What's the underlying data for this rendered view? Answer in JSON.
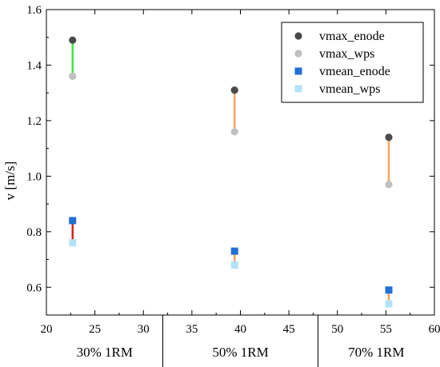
{
  "chart_data": {
    "type": "scatter",
    "title": "",
    "xlabel": "",
    "ylabel": "v [m/s]",
    "xlim": [
      20,
      60
    ],
    "ylim": [
      0.5,
      1.6
    ],
    "x_ticks": [
      "20",
      "25",
      "30",
      "35",
      "40",
      "45",
      "50",
      "55",
      "60"
    ],
    "y_ticks": [
      "0.6",
      "0.8",
      "1.0",
      "1.2",
      "1.4",
      "1.6"
    ],
    "x_tick_values": [
      20,
      25,
      30,
      35,
      40,
      45,
      50,
      55,
      60
    ],
    "y_tick_values": [
      0.6,
      0.8,
      1.0,
      1.2,
      1.4,
      1.6
    ],
    "grid": false,
    "legend_position": "top-right",
    "group_labels": [
      {
        "label": "30% 1RM",
        "x_from": 20,
        "x_to": 32
      },
      {
        "label": "50% 1RM",
        "x_from": 32,
        "x_to": 48
      },
      {
        "label": "70% 1RM",
        "x_from": 48,
        "x_to": 60
      }
    ],
    "group_separators": [
      32,
      48
    ],
    "series": [
      {
        "name": "vmax_enode",
        "marker": "circle",
        "color": "#4a4a4a",
        "points": [
          {
            "x": 22.7,
            "y": 1.49
          },
          {
            "x": 39.4,
            "y": 1.31
          },
          {
            "x": 55.3,
            "y": 1.14
          }
        ]
      },
      {
        "name": "vmax_wps",
        "marker": "circle",
        "color": "#c0c0c0",
        "points": [
          {
            "x": 22.7,
            "y": 1.36
          },
          {
            "x": 39.4,
            "y": 1.16
          },
          {
            "x": 55.3,
            "y": 0.97
          }
        ]
      },
      {
        "name": "vmean_enode",
        "marker": "square",
        "color": "#1f6fd6",
        "points": [
          {
            "x": 22.7,
            "y": 0.84
          },
          {
            "x": 39.4,
            "y": 0.73
          },
          {
            "x": 55.3,
            "y": 0.59
          }
        ]
      },
      {
        "name": "vmean_wps",
        "marker": "square",
        "color": "#b3e3f7",
        "points": [
          {
            "x": 22.7,
            "y": 0.76
          },
          {
            "x": 39.4,
            "y": 0.68
          },
          {
            "x": 55.3,
            "y": 0.54
          }
        ]
      }
    ],
    "connectors": [
      {
        "x": 22.7,
        "y_from": 1.36,
        "y_to": 1.49,
        "color": "#3ee83e"
      },
      {
        "x": 39.4,
        "y_from": 1.16,
        "y_to": 1.31,
        "color": "#f4a460"
      },
      {
        "x": 55.3,
        "y_from": 0.97,
        "y_to": 1.14,
        "color": "#f4a460"
      },
      {
        "x": 22.7,
        "y_from": 0.76,
        "y_to": 0.84,
        "color": "#e02020"
      },
      {
        "x": 39.4,
        "y_from": 0.68,
        "y_to": 0.73,
        "color": "#f4a460"
      },
      {
        "x": 55.3,
        "y_from": 0.54,
        "y_to": 0.59,
        "color": "#f4a460"
      }
    ]
  }
}
